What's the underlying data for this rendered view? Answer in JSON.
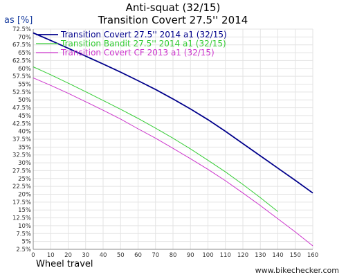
{
  "chart_data": {
    "type": "line",
    "title": "Anti-squat (32/15)",
    "subtitle": "Transition Covert 27.5'' 2014",
    "ylabel": "as [%]",
    "xlabel": "Wheel travel",
    "xlim": [
      0,
      160
    ],
    "ylim": [
      2.5,
      72.5
    ],
    "x_ticks": [
      0,
      10,
      20,
      30,
      40,
      50,
      60,
      70,
      80,
      90,
      100,
      110,
      120,
      130,
      140,
      150,
      160
    ],
    "y_ticks": [
      2.5,
      5,
      7.5,
      10,
      12.5,
      15,
      17.5,
      20,
      22.5,
      25,
      27.5,
      30,
      32.5,
      35,
      37.5,
      40,
      42.5,
      45,
      47.5,
      50,
      52.5,
      55,
      57.5,
      60,
      62.5,
      65,
      67.5,
      70,
      72.5
    ],
    "grid": true,
    "legend_position": "top-left",
    "series": [
      {
        "name": "Transition Covert 27.5'' 2014 a1 (32/15)",
        "color": "#00008b",
        "x": [
          0,
          10,
          20,
          30,
          40,
          50,
          60,
          70,
          80,
          90,
          100,
          110,
          120,
          130,
          140,
          150,
          160
        ],
        "y": [
          71.3,
          68.9,
          66.4,
          63.9,
          61.4,
          58.8,
          56.1,
          53.3,
          50.3,
          47.1,
          43.7,
          40.0,
          36.1,
          32.2,
          28.3,
          24.4,
          20.4
        ]
      },
      {
        "name": "Transition Bandit 27.5'' 2014 a1 (32/15)",
        "color": "#33cc33",
        "x": [
          0,
          10,
          20,
          30,
          40,
          50,
          60,
          70,
          80,
          90,
          100,
          110,
          120,
          130,
          140
        ],
        "y": [
          60.5,
          58.0,
          55.3,
          52.6,
          49.8,
          47.0,
          44.1,
          41.0,
          37.8,
          34.4,
          30.8,
          27.1,
          23.1,
          18.9,
          14.5
        ]
      },
      {
        "name": "Transition Covert CF 2013 a1 (32/15)",
        "color": "#cc33cc",
        "x": [
          0,
          10,
          20,
          30,
          40,
          50,
          60,
          70,
          80,
          90,
          100,
          110,
          120,
          130,
          140,
          150,
          160
        ],
        "y": [
          57.0,
          54.6,
          52.1,
          49.4,
          46.7,
          43.9,
          40.8,
          37.8,
          34.6,
          31.3,
          27.9,
          24.3,
          20.4,
          16.4,
          12.2,
          8.0,
          3.6
        ]
      }
    ]
  },
  "footer": {
    "credit": "www.bikechecker.com"
  }
}
